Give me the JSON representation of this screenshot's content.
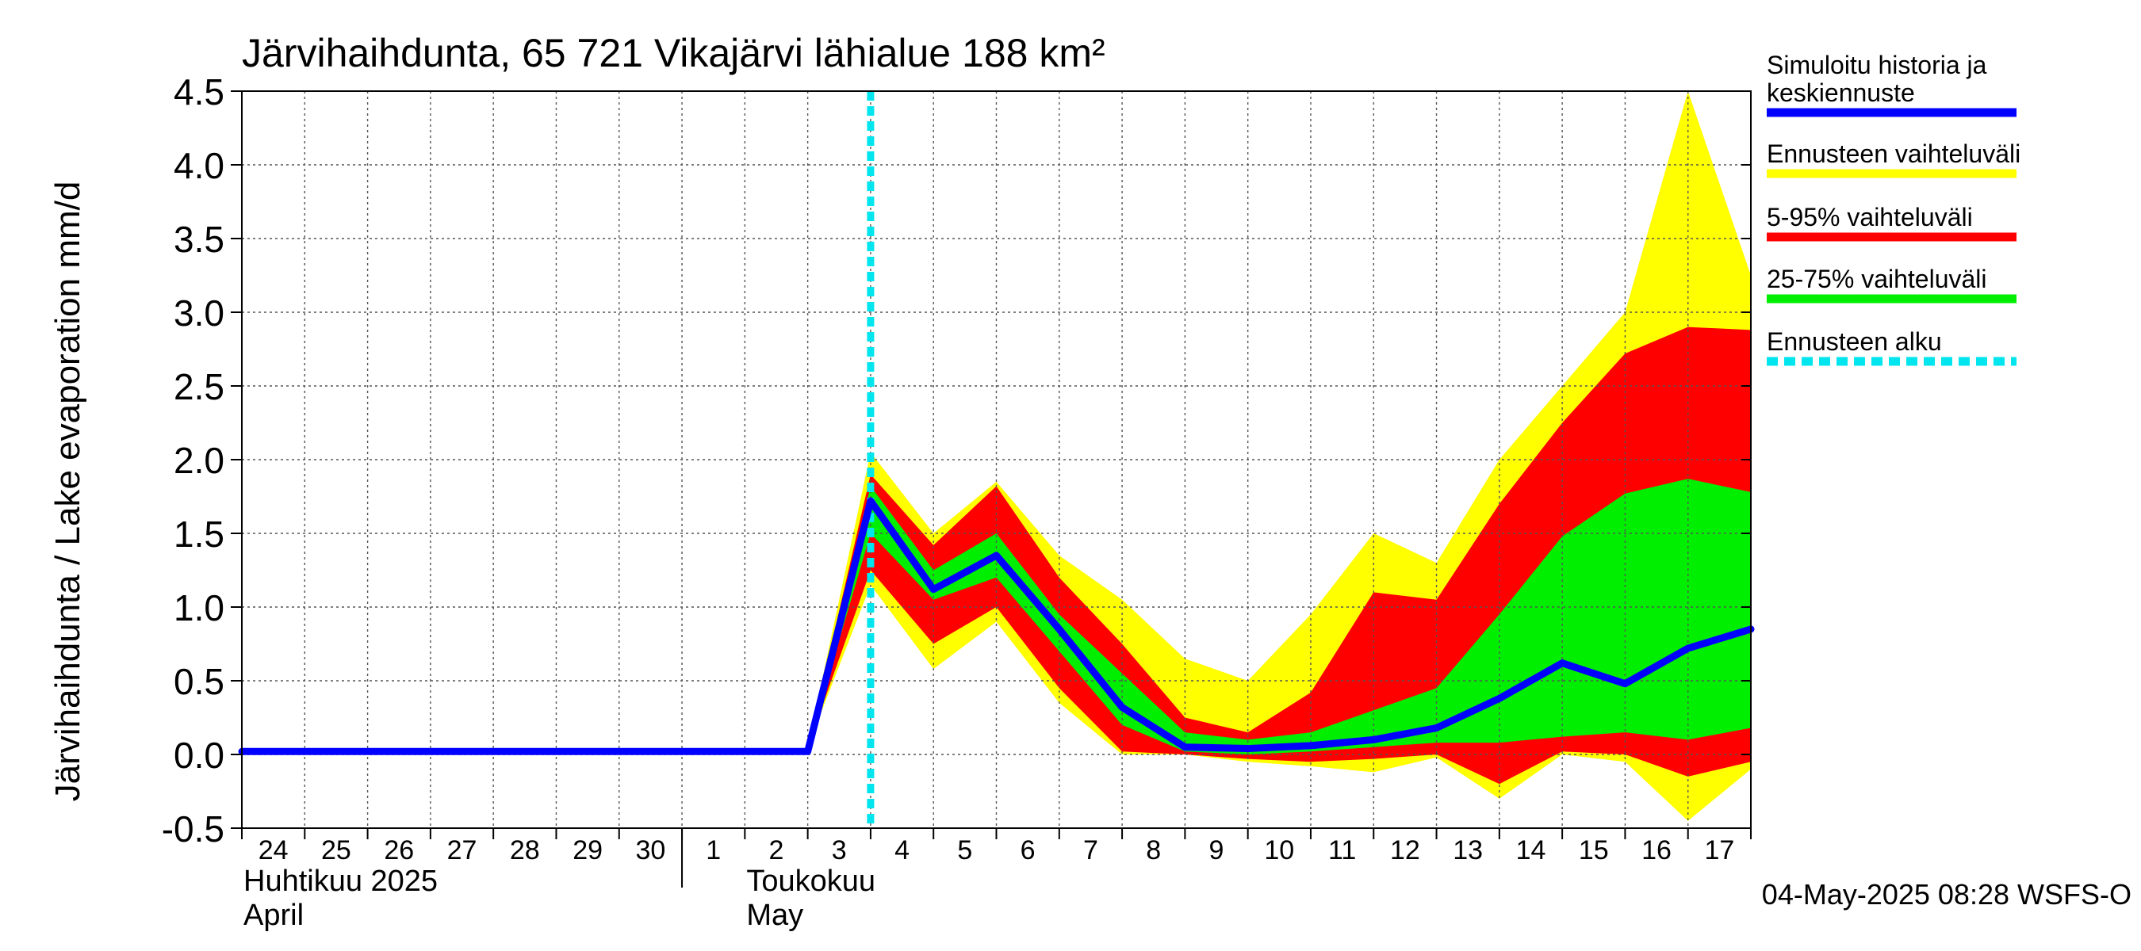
{
  "chart_data": {
    "type": "area",
    "title": "Järvihaihdunta, 65 721 Vikajärvi lähialue 188 km²",
    "ylabel": "Järvihaihdunta / Lake evaporation   mm/d",
    "xlabel": "",
    "ylim": [
      -0.5,
      4.5
    ],
    "yticks": [
      -0.5,
      0.0,
      0.5,
      1.0,
      1.5,
      2.0,
      2.5,
      3.0,
      3.5,
      4.0,
      4.5
    ],
    "ytick_labels": [
      "-0.5",
      "0.0",
      "0.5",
      "1.0",
      "1.5",
      "2.0",
      "2.5",
      "3.0",
      "3.5",
      "4.0",
      "4.5"
    ],
    "xlim_days": [
      0,
      24
    ],
    "xtick_labels": [
      "24",
      "25",
      "26",
      "27",
      "28",
      "29",
      "30",
      "1",
      "2",
      "3",
      "4",
      "5",
      "6",
      "7",
      "8",
      "9",
      "10",
      "11",
      "12",
      "13",
      "14",
      "15",
      "16",
      "17"
    ],
    "month_labels": [
      {
        "line1": "Huhtikuu  2025",
        "line2": "April",
        "day": 0
      },
      {
        "line1": "Toukokuu",
        "line2": "May",
        "day": 8
      }
    ],
    "month_separator_days": [
      7
    ],
    "footer": "04-May-2025 08:28 WSFS-O",
    "forecast_start_day": 10.0,
    "grid": true,
    "legend": [
      {
        "label_lines": [
          "Simuloitu historia ja",
          "keskiennuste"
        ],
        "color": "#0000ff",
        "style": "solid"
      },
      {
        "label_lines": [
          "Ennusteen vaihteluväli"
        ],
        "color": "#ffff00",
        "style": "solid"
      },
      {
        "label_lines": [
          "5-95% vaihteluväli"
        ],
        "color": "#ff0000",
        "style": "solid"
      },
      {
        "label_lines": [
          "25-75% vaihteluväli"
        ],
        "color": "#00ee00",
        "style": "solid"
      },
      {
        "label_lines": [
          "Ennusteen alku"
        ],
        "color": "#00e5ee",
        "style": "dashed"
      }
    ],
    "band_x": [
      9.0,
      10.0,
      11.0,
      12.0,
      13.0,
      14.0,
      15.0,
      16.0,
      17.0,
      18.0,
      19.0,
      20.0,
      21.0,
      22.0,
      23.0,
      24.0
    ],
    "bands": [
      {
        "name": "Ennusteen vaihteluväli",
        "color": "#ffff00",
        "upper": [
          0.05,
          2.05,
          1.5,
          1.85,
          1.35,
          1.05,
          0.65,
          0.5,
          0.95,
          1.5,
          1.3,
          2.0,
          2.5,
          3.0,
          4.5,
          3.25
        ],
        "lower": [
          0.05,
          1.15,
          0.58,
          0.9,
          0.35,
          0.0,
          0.0,
          -0.05,
          -0.08,
          -0.12,
          -0.02,
          -0.3,
          0.0,
          -0.05,
          -0.45,
          -0.1
        ]
      },
      {
        "name": "5-95% vaihteluväli",
        "color": "#ff0000",
        "upper": [
          0.05,
          1.9,
          1.42,
          1.82,
          1.2,
          0.75,
          0.25,
          0.15,
          0.42,
          1.1,
          1.05,
          1.7,
          2.25,
          2.72,
          2.9,
          2.88
        ],
        "lower": [
          0.05,
          1.25,
          0.75,
          1.0,
          0.45,
          0.02,
          0.0,
          -0.03,
          -0.05,
          -0.03,
          0.0,
          -0.2,
          0.02,
          0.0,
          -0.15,
          -0.05
        ]
      },
      {
        "name": "25-75% vaihteluväli",
        "color": "#00ee00",
        "upper": [
          0.05,
          1.82,
          1.25,
          1.5,
          0.95,
          0.55,
          0.15,
          0.1,
          0.15,
          0.3,
          0.45,
          0.95,
          1.48,
          1.77,
          1.87,
          1.78
        ],
        "lower": [
          0.05,
          1.5,
          1.05,
          1.2,
          0.7,
          0.2,
          0.02,
          0.0,
          0.02,
          0.05,
          0.08,
          0.08,
          0.12,
          0.15,
          0.1,
          0.18
        ]
      }
    ],
    "series": [
      {
        "name": "Simuloitu historia ja keskiennuste",
        "color": "#0000ff",
        "x": [
          0,
          1,
          2,
          3,
          4,
          5,
          6,
          7,
          8,
          9,
          10,
          11,
          12,
          13,
          14,
          15,
          16,
          17,
          18,
          19,
          20,
          21,
          22,
          23,
          24
        ],
        "values": [
          0.02,
          0.02,
          0.02,
          0.02,
          0.02,
          0.02,
          0.02,
          0.02,
          0.02,
          0.02,
          1.72,
          1.12,
          1.35,
          0.85,
          0.32,
          0.05,
          0.04,
          0.06,
          0.1,
          0.18,
          0.38,
          0.62,
          0.48,
          0.72,
          0.85
        ]
      }
    ]
  }
}
